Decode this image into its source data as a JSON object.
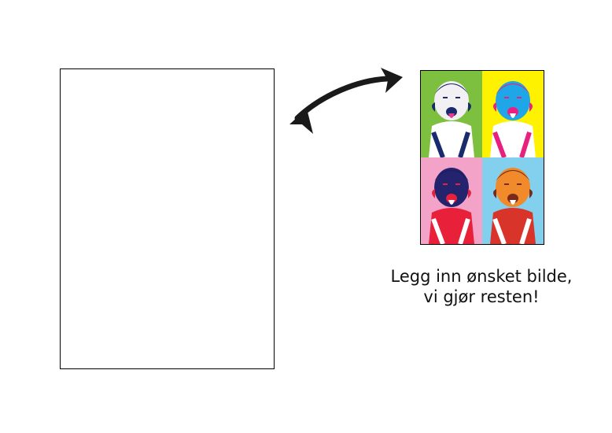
{
  "caption": {
    "line1": "Legg inn ønsket bilde,",
    "line2": "vi gjør resten!"
  },
  "example": {
    "icon": "child-portrait-popart",
    "tiles": [
      {
        "bg": "#7dbf3f",
        "face": "#f3f0f4",
        "hair": "#1a2b6d",
        "shirt": "#ffffff",
        "accent": "#e83a8c"
      },
      {
        "bg": "#fff200",
        "face": "#1ea6e8",
        "hair": "#e8207f",
        "shirt": "#ffffff",
        "accent": "#e8207f"
      },
      {
        "bg": "#f3a2c8",
        "face": "#24246e",
        "hair": "#1b1b60",
        "shirt": "#e8203a",
        "accent": "#ffffff"
      },
      {
        "bg": "#82cfee",
        "face": "#f08a2a",
        "hair": "#7a2a1a",
        "shirt": "#d9342a",
        "accent": "#ffffff"
      }
    ]
  },
  "arrow": {
    "icon": "curved-arrow-icon",
    "color": "#1a1a1a"
  }
}
